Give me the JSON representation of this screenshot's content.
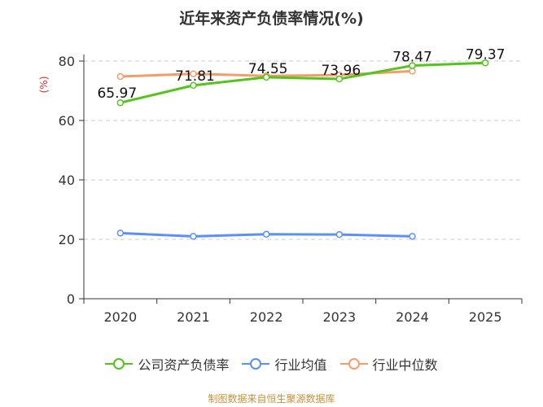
{
  "title": "近年来资产负债率情况(%)",
  "source": "制图数据来自恒生聚源数据库",
  "chart_data": {
    "type": "line",
    "title": "近年来资产负债率情况(%)",
    "ylabel": "(%)",
    "xlabel": "",
    "categories": [
      "2020",
      "2021",
      "2022",
      "2023",
      "2024",
      "2025"
    ],
    "ylim": [
      0,
      80
    ],
    "yticks": [
      "0",
      "20",
      "40",
      "60",
      "80"
    ],
    "grid": "horizontal dashed",
    "legend": "bottom",
    "series": [
      {
        "name": "公司资产负债率",
        "color": "#52c41a",
        "values": [
          65.97,
          71.81,
          74.55,
          73.96,
          78.47,
          79.37
        ],
        "labels": [
          "65.97",
          "71.81",
          "74.55",
          "73.96",
          "78.47",
          "79.37"
        ]
      },
      {
        "name": "行业均值",
        "color": "#5b8ff9",
        "values": [
          22.1,
          21.0,
          21.7,
          21.6,
          21.0,
          null
        ]
      },
      {
        "name": "行业中位数",
        "color": "#f59c6b",
        "values": [
          74.8,
          75.7,
          75.0,
          75.3,
          76.6,
          null
        ]
      }
    ]
  }
}
